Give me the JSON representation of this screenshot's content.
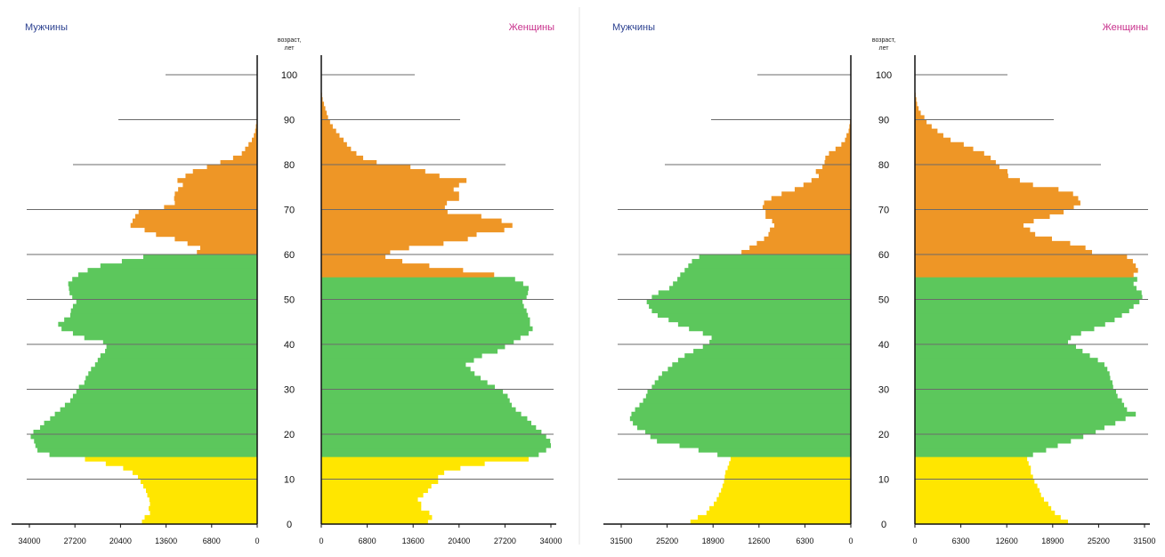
{
  "chart_data": [
    {
      "type": "population-pyramid",
      "left_label": "Мужчины",
      "right_label": "Женщины",
      "age_axis_label": "возраст, лет",
      "age_ticks": [
        "0",
        "10",
        "20",
        "30",
        "40",
        "50",
        "60",
        "70",
        "80",
        "90",
        "100"
      ],
      "left_ticks": [
        "34000",
        "27200",
        "20400",
        "13600",
        "6800",
        "0"
      ],
      "right_ticks": [
        "0",
        "6800",
        "13600",
        "20400",
        "27200",
        "34000"
      ],
      "xmax": 34000,
      "ymax": 104,
      "colors": {
        "young": "#ffe600",
        "working": "#5cc75c",
        "old": "#ee9626",
        "male_label": "#2a3f8f",
        "female_label": "#c8308c"
      },
      "male_groups": [
        {
          "name": "young",
          "from": 0,
          "to": 15,
          "color": "#ffe600"
        },
        {
          "name": "working",
          "from": 15,
          "to": 60,
          "color": "#5cc75c"
        },
        {
          "name": "old",
          "from": 60,
          "to": 101,
          "color": "#ee9626"
        }
      ],
      "female_groups": [
        {
          "name": "young",
          "from": 0,
          "to": 15,
          "color": "#ffe600"
        },
        {
          "name": "working",
          "from": 15,
          "to": 55,
          "color": "#5cc75c"
        },
        {
          "name": "old",
          "from": 55,
          "to": 101,
          "color": "#ee9626"
        }
      ],
      "male": [
        17200,
        16800,
        16000,
        16200,
        16000,
        16100,
        16400,
        16600,
        17000,
        17400,
        17800,
        18600,
        20000,
        22600,
        25700,
        31000,
        32800,
        33100,
        33300,
        33800,
        33400,
        32400,
        31800,
        30900,
        30200,
        29400,
        28700,
        27900,
        27500,
        27000,
        26600,
        25800,
        25600,
        25200,
        24800,
        24200,
        23800,
        23400,
        22700,
        22500,
        23000,
        25800,
        27500,
        29200,
        29700,
        28800,
        27900,
        27800,
        27500,
        27000,
        27600,
        28000,
        28100,
        28200,
        27600,
        26700,
        25300,
        23400,
        20200,
        17000,
        9000,
        8500,
        10400,
        12300,
        15100,
        16800,
        18900,
        18600,
        18200,
        17700,
        13900,
        12300,
        12400,
        12300,
        11800,
        11100,
        11900,
        10700,
        9600,
        7500,
        5500,
        3600,
        2300,
        1800,
        1300,
        800,
        500,
        300,
        200,
        100,
        50,
        30,
        20,
        10,
        5,
        0,
        0,
        0,
        0,
        0,
        0
      ],
      "female": [
        15800,
        16400,
        16000,
        14800,
        14800,
        14300,
        15100,
        15800,
        16300,
        17300,
        17300,
        18200,
        20600,
        24200,
        30700,
        32200,
        33300,
        34000,
        33900,
        33300,
        32600,
        31800,
        31100,
        30500,
        29600,
        28800,
        28200,
        27900,
        27600,
        26900,
        25700,
        24600,
        23600,
        22700,
        22100,
        21400,
        22600,
        23800,
        26100,
        27200,
        28500,
        29500,
        30700,
        31300,
        30900,
        30900,
        30600,
        30400,
        30000,
        29800,
        30400,
        30600,
        30700,
        29900,
        28700,
        25600,
        21000,
        16000,
        12000,
        9500,
        10200,
        13000,
        18100,
        21700,
        23000,
        27100,
        28300,
        26700,
        23700,
        18700,
        18300,
        18600,
        20400,
        20400,
        19600,
        20400,
        21500,
        17500,
        15400,
        13200,
        8200,
        6200,
        5200,
        4400,
        3800,
        3300,
        2700,
        2200,
        1700,
        1300,
        1000,
        800,
        600,
        400,
        200,
        100,
        50,
        20,
        10,
        0,
        0
      ]
    },
    {
      "type": "population-pyramid",
      "left_label": "Мужчины",
      "right_label": "Женщины",
      "age_axis_label": "возраст, лет",
      "age_ticks": [
        "0",
        "10",
        "20",
        "30",
        "40",
        "50",
        "60",
        "70",
        "80",
        "90",
        "100"
      ],
      "left_ticks": [
        "31500",
        "25200",
        "18900",
        "12600",
        "6300",
        "0"
      ],
      "right_ticks": [
        "0",
        "6300",
        "12600",
        "18900",
        "25200",
        "31500"
      ],
      "xmax": 31500,
      "ymax": 104,
      "colors": {
        "young": "#ffe600",
        "working": "#5cc75c",
        "old": "#ee9626",
        "male_label": "#2a3f8f",
        "female_label": "#c8308c"
      },
      "male_groups": [
        {
          "name": "young",
          "from": 0,
          "to": 15,
          "color": "#ffe600"
        },
        {
          "name": "working",
          "from": 15,
          "to": 60,
          "color": "#5cc75c"
        },
        {
          "name": "old",
          "from": 60,
          "to": 101,
          "color": "#ee9626"
        }
      ],
      "female_groups": [
        {
          "name": "young",
          "from": 0,
          "to": 15,
          "color": "#ffe600"
        },
        {
          "name": "working",
          "from": 15,
          "to": 55,
          "color": "#5cc75c"
        },
        {
          "name": "old",
          "from": 55,
          "to": 101,
          "color": "#ee9626"
        }
      ],
      "male": [
        22000,
        21000,
        19800,
        19400,
        18800,
        18400,
        18100,
        17800,
        17600,
        17400,
        17300,
        17200,
        16900,
        16700,
        16500,
        18300,
        20900,
        23500,
        26600,
        27500,
        28200,
        29300,
        29900,
        30300,
        30100,
        29600,
        29000,
        28500,
        28100,
        27900,
        27300,
        26900,
        26400,
        25900,
        25100,
        24500,
        23700,
        22800,
        21600,
        20300,
        19400,
        19100,
        20300,
        22200,
        23700,
        25000,
        26500,
        27300,
        27700,
        28000,
        27300,
        26400,
        24900,
        24400,
        23800,
        23400,
        22800,
        22300,
        21800,
        20800,
        15000,
        13900,
        12900,
        11900,
        11300,
        11100,
        10500,
        10800,
        11700,
        11700,
        12100,
        11900,
        10900,
        9500,
        7700,
        6500,
        5400,
        4400,
        4800,
        3900,
        3600,
        3500,
        3000,
        2100,
        1300,
        800,
        600,
        300,
        200,
        100,
        50,
        30,
        20,
        10,
        5,
        0,
        0,
        0,
        0,
        0,
        0
      ],
      "female": [
        21000,
        20000,
        19200,
        18700,
        18300,
        17700,
        17300,
        17100,
        16800,
        16400,
        16200,
        15900,
        15900,
        15600,
        15400,
        16200,
        18000,
        19600,
        21400,
        23100,
        24800,
        26000,
        27500,
        28900,
        30300,
        29100,
        28700,
        28400,
        27800,
        27600,
        27200,
        27100,
        26800,
        26700,
        26400,
        26000,
        25100,
        24000,
        23000,
        22100,
        21000,
        21400,
        22800,
        24600,
        26100,
        27400,
        28400,
        29400,
        30000,
        30800,
        31200,
        31100,
        30400,
        30000,
        30500,
        30000,
        30600,
        30300,
        29900,
        29100,
        24300,
        23400,
        21300,
        18800,
        16500,
        15800,
        14900,
        16300,
        18500,
        20400,
        21800,
        22700,
        22400,
        21700,
        19700,
        16200,
        14400,
        12800,
        12700,
        11600,
        11100,
        10400,
        9500,
        8000,
        6700,
        4900,
        3900,
        3100,
        2300,
        1600,
        1300,
        800,
        500,
        300,
        200,
        100,
        50,
        20,
        10,
        0,
        0
      ]
    }
  ]
}
